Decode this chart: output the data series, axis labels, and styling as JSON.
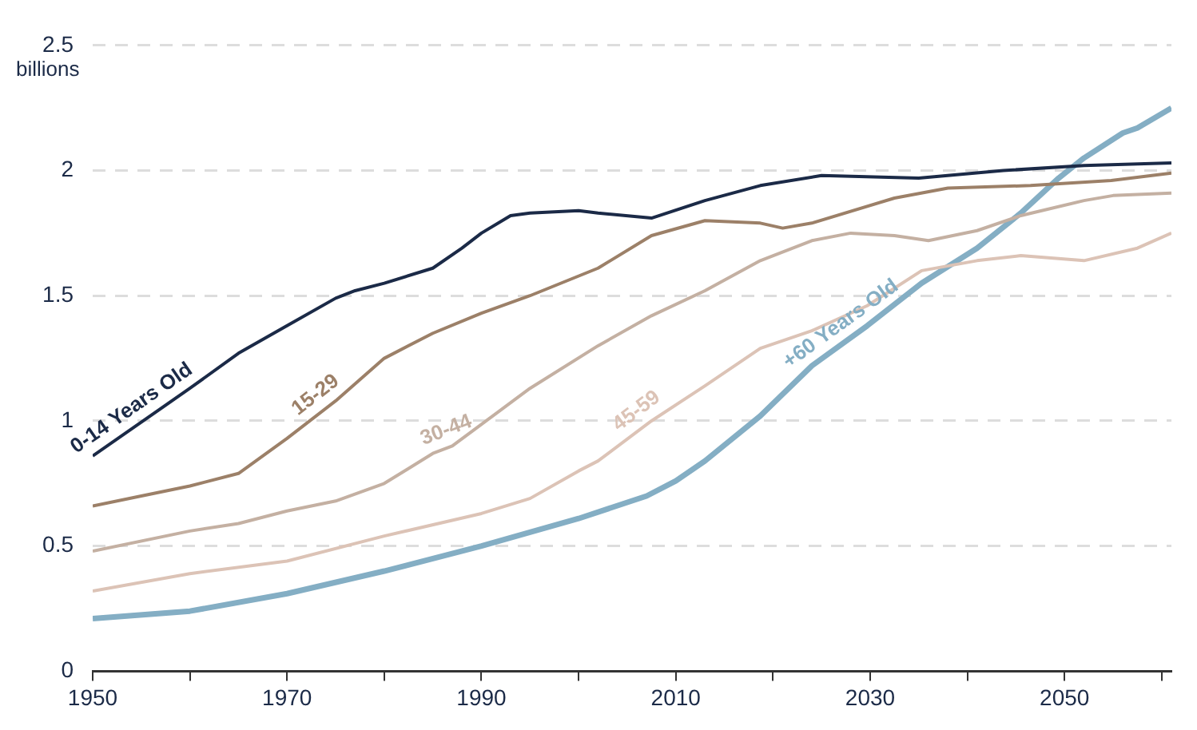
{
  "chart_data": {
    "type": "line",
    "ylabel": "billions",
    "xlim": [
      1950,
      2061
    ],
    "ylim": [
      0,
      2.5
    ],
    "xticks": [
      1950,
      {
        "value": 1960,
        "label": null
      },
      1970,
      {
        "value": 1980,
        "label": null
      },
      1990,
      {
        "value": 2000,
        "label": null
      },
      2010,
      {
        "value": 2020,
        "label": null
      },
      2030,
      {
        "value": 2040,
        "label": null
      },
      2050,
      {
        "value": 2060,
        "label": null
      }
    ],
    "yticks": [
      0,
      0.5,
      1,
      1.5,
      2,
      2.5
    ],
    "grid": "y",
    "legend": false,
    "marker": "none",
    "line_style": "solid",
    "series": [
      {
        "name": "0-14 Years Old",
        "color": "#1b2a47",
        "x": [
          1950,
          1960,
          1965,
          1970,
          1975,
          1977,
          1980,
          1985,
          1988,
          1990,
          1993,
          1995,
          2000,
          2002,
          2007.5,
          2013,
          2018.7,
          2025,
          2035,
          2043.7,
          2052,
          2061
        ],
        "values": [
          0.86,
          1.13,
          1.27,
          1.38,
          1.49,
          1.52,
          1.55,
          1.61,
          1.69,
          1.75,
          1.82,
          1.83,
          1.84,
          1.83,
          1.81,
          1.88,
          1.94,
          1.98,
          1.97,
          2.0,
          2.02,
          2.03
        ]
      },
      {
        "name": "15-29",
        "color": "#9c8068",
        "x": [
          1950,
          1955,
          1960,
          1965,
          1970,
          1975,
          1980,
          1985,
          1990,
          1995,
          2002,
          2007.5,
          2013,
          2018.7,
          2021,
          2024,
          2032.5,
          2038,
          2046.5,
          2054.8,
          2061
        ],
        "values": [
          0.66,
          0.7,
          0.74,
          0.79,
          0.93,
          1.08,
          1.25,
          1.35,
          1.43,
          1.5,
          1.61,
          1.74,
          1.8,
          1.79,
          1.77,
          1.79,
          1.89,
          1.93,
          1.94,
          1.96,
          1.99
        ]
      },
      {
        "name": "30-44",
        "color": "#c4b0a2",
        "x": [
          1950,
          1960,
          1965,
          1970,
          1975,
          1980,
          1985,
          1987,
          1995,
          2002,
          2007.5,
          2013,
          2018.7,
          2024,
          2028,
          2032.5,
          2036,
          2041,
          2045.5,
          2052,
          2055,
          2061
        ],
        "values": [
          0.48,
          0.56,
          0.59,
          0.64,
          0.68,
          0.75,
          0.87,
          0.9,
          1.13,
          1.3,
          1.42,
          1.52,
          1.64,
          1.72,
          1.75,
          1.74,
          1.72,
          1.76,
          1.82,
          1.88,
          1.9,
          1.91
        ]
      },
      {
        "name": "45-59",
        "color": "#dcc3b6",
        "x": [
          1950,
          1960,
          1970,
          1980,
          1990,
          1995,
          2000,
          2002,
          2007.5,
          2013,
          2018.7,
          2024,
          2029.7,
          2035.3,
          2041,
          2045.5,
          2052,
          2057.5,
          2061
        ],
        "values": [
          0.32,
          0.39,
          0.44,
          0.54,
          0.63,
          0.69,
          0.8,
          0.84,
          1.0,
          1.14,
          1.29,
          1.36,
          1.46,
          1.6,
          1.64,
          1.66,
          1.64,
          1.69,
          1.75
        ]
      },
      {
        "name": "+60 Years Old",
        "color": "#84aec4",
        "x": [
          1950,
          1960,
          1970,
          1980,
          1990,
          2000,
          2007,
          2010,
          2013,
          2018.7,
          2024,
          2029.7,
          2035.3,
          2041,
          2045.5,
          2049.4,
          2052,
          2056,
          2057.5,
          2061
        ],
        "values": [
          0.21,
          0.24,
          0.31,
          0.4,
          0.5,
          0.61,
          0.7,
          0.76,
          0.84,
          1.02,
          1.22,
          1.38,
          1.55,
          1.69,
          1.83,
          1.97,
          2.05,
          2.15,
          2.17,
          2.25
        ]
      }
    ]
  }
}
